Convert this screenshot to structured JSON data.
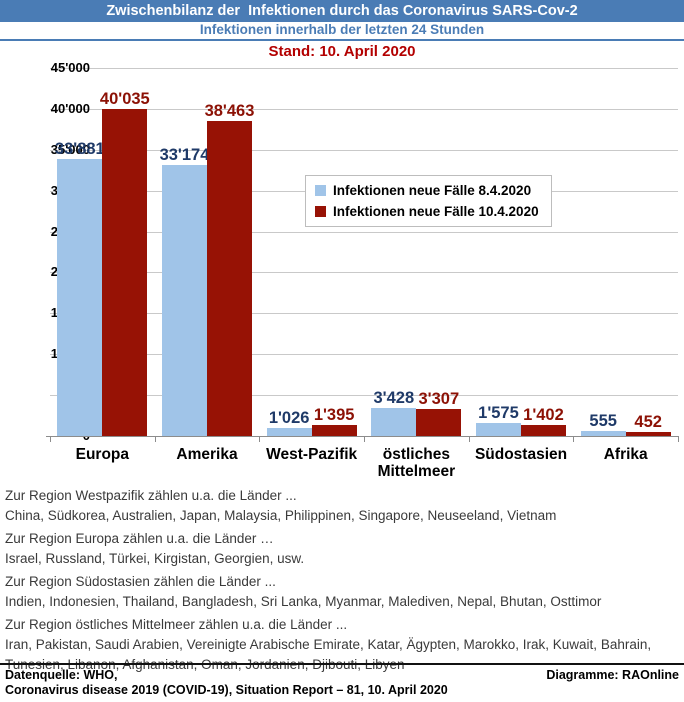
{
  "header": {
    "title": "Zwischenbilanz der  Infektionen durch das Coronavirus SARS-Cov-2",
    "subtitle": "Infektionen innerhalb der letzten 24 Stunden",
    "stand": "Stand: 10. April 2020"
  },
  "colors": {
    "banner_bg": "#4a7cb5",
    "banner_text": "#ffffff",
    "subtitle_text": "#4a7cb5",
    "stand_text": "#b30000",
    "gridline": "#c9c9c9",
    "axis": "#8c8c8c",
    "series1_bar": "#a0c4e8",
    "series1_label": "#1f3a68",
    "series2_bar": "#971205",
    "series2_label": "#8c1105"
  },
  "chart_data": {
    "type": "bar",
    "title": "Infektionen innerhalb der letzten 24 Stunden",
    "categories": [
      "Europa",
      "Amerika",
      "West-Pazifik",
      "östliches Mittelmeer",
      "Südostasien",
      "Afrika"
    ],
    "series": [
      {
        "name": "Infektionen neue Fälle 8.4.2020",
        "color": "#a0c4e8",
        "label_color": "#1f3a68",
        "values": [
          33881,
          33174,
          1026,
          3428,
          1575,
          555
        ],
        "value_labels": [
          "33'881",
          "33'174",
          "1'026",
          "3'428",
          "1'575",
          "555"
        ]
      },
      {
        "name": "Infektionen neue Fälle 10.4.2020",
        "color": "#971205",
        "label_color": "#8c1105",
        "values": [
          40035,
          38463,
          1395,
          3307,
          1402,
          452
        ],
        "value_labels": [
          "40'035",
          "38'463",
          "1'395",
          "3'307",
          "1'402",
          "452"
        ]
      }
    ],
    "ylim": [
      0,
      45000
    ],
    "ytick_step": 5000,
    "ytick_labels": [
      "0",
      "5'000",
      "10'000",
      "15'000",
      "20'000",
      "25'000",
      "30'000",
      "35'000",
      "40'000",
      "45'000"
    ],
    "grid": true,
    "legend_position": "center-right"
  },
  "notes": [
    {
      "heading": "Zur Region Westpazifik zählen u.a. die Länder ...",
      "body": "China, Südkorea, Australien, Japan, Malaysia, Philippinen, Singapore, Neuseeland, Vietnam"
    },
    {
      "heading": "Zur Region Europa zählen u.a. die Länder …",
      "body": "Israel, Russland, Türkei, Kirgistan, Georgien, usw."
    },
    {
      "heading": "Zur Region Südostasien zählen die Länder ...",
      "body": "Indien, Indonesien, Thailand, Bangladesh, Sri Lanka, Myanmar, Malediven, Nepal, Bhutan, Osttimor"
    },
    {
      "heading": "Zur Region östliches Mittelmeer zählen u.a. die Länder ...",
      "body": "Iran, Pakistan, Saudi Arabien, Vereinigte Arabische Emirate, Katar, Ägypten, Marokko, Irak, Kuwait, Bahrain, Tunesien, Libanon, Afghanistan, Oman, Jordanien, Djibouti, Libyen"
    }
  ],
  "footer": {
    "source_line1": "Datenquelle: WHO,",
    "source_line2": "Coronavirus disease 2019 (COVID-19), Situation Report – 81, 10. April 2020",
    "credit": "Diagramme: RAOnline"
  }
}
